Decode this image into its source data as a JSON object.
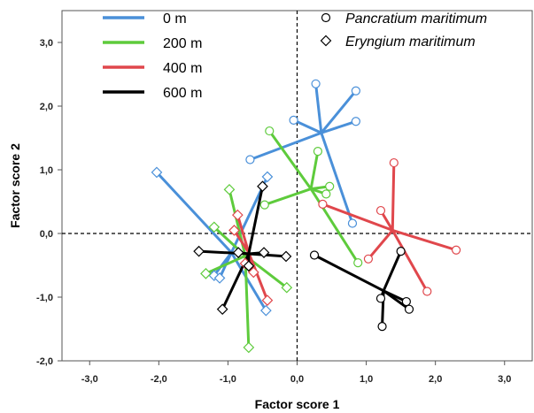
{
  "chart_data": {
    "type": "scatter",
    "xlabel": "Factor score 1",
    "ylabel": "Factor score  2",
    "xlim": [
      -3.4,
      3.4
    ],
    "ylim": [
      -2.0,
      3.5
    ],
    "x_ticks": [
      -3,
      -2,
      -1,
      0,
      1,
      2,
      3
    ],
    "y_ticks": [
      -2,
      -1,
      0,
      1,
      2,
      3
    ],
    "x_tick_labels": [
      "-3,0",
      "-2,0",
      "-1,0",
      "0,0",
      "1,0",
      "2,0",
      "3,0"
    ],
    "y_tick_labels": [
      "-2,0",
      "-1,0",
      "0,0",
      "1,0",
      "2,0",
      "3,0"
    ],
    "reference_lines": {
      "x": 0,
      "y": 0,
      "style": "dashed"
    },
    "grid": false,
    "legend": {
      "placement": "top-left",
      "distance_entries": [
        {
          "label": "0 m",
          "color": "#4a90d9"
        },
        {
          "label": "200 m",
          "color": "#5ecb3c"
        },
        {
          "label": "400 m",
          "color": "#e0474c"
        },
        {
          "label": "600 m",
          "color": "#000000"
        }
      ],
      "species_entries": [
        {
          "label": "Pancratium maritimum",
          "marker": "circle"
        },
        {
          "label": "Eryngium maritimum",
          "marker": "diamond"
        }
      ]
    },
    "groups": [
      {
        "distance": "0 m",
        "species": "Pancratium maritimum",
        "marker": "circle",
        "color": "#4a90d9",
        "centroid": [
          0.35,
          1.58
        ],
        "points": [
          [
            0.27,
            2.35
          ],
          [
            0.85,
            2.24
          ],
          [
            -0.05,
            1.78
          ],
          [
            0.85,
            1.76
          ],
          [
            -0.68,
            1.16
          ],
          [
            0.8,
            0.16
          ]
        ]
      },
      {
        "distance": "200 m",
        "species": "Pancratium maritimum",
        "marker": "circle",
        "color": "#5ecb3c",
        "centroid": [
          0.2,
          0.7
        ],
        "points": [
          [
            -0.4,
            1.61
          ],
          [
            0.3,
            1.29
          ],
          [
            0.47,
            0.74
          ],
          [
            0.42,
            0.62
          ],
          [
            -0.47,
            0.45
          ],
          [
            0.88,
            -0.46
          ]
        ]
      },
      {
        "distance": "400 m",
        "species": "Pancratium maritimum",
        "marker": "circle",
        "color": "#e0474c",
        "centroid": [
          1.38,
          0.05
        ],
        "points": [
          [
            1.4,
            1.11
          ],
          [
            1.21,
            0.36
          ],
          [
            0.37,
            0.46
          ],
          [
            2.3,
            -0.26
          ],
          [
            1.03,
            -0.4
          ],
          [
            1.88,
            -0.91
          ]
        ]
      },
      {
        "distance": "600 m",
        "species": "Pancratium maritimum",
        "marker": "circle",
        "color": "#000000",
        "centroid": [
          1.25,
          -0.9
        ],
        "points": [
          [
            0.25,
            -0.34
          ],
          [
            1.5,
            -0.28
          ],
          [
            1.21,
            -1.02
          ],
          [
            1.58,
            -1.07
          ],
          [
            1.62,
            -1.19
          ],
          [
            1.23,
            -1.46
          ]
        ]
      },
      {
        "distance": "0 m",
        "species": "Eryngium maritimum",
        "marker": "diamond",
        "color": "#4a90d9",
        "centroid": [
          -0.95,
          -0.3
        ],
        "points": [
          [
            -2.03,
            0.96
          ],
          [
            -0.43,
            0.89
          ],
          [
            -1.2,
            -0.66
          ],
          [
            -1.12,
            -0.7
          ],
          [
            -0.45,
            -1.21
          ]
        ]
      },
      {
        "distance": "200 m",
        "species": "Eryngium maritimum",
        "marker": "diamond",
        "color": "#5ecb3c",
        "centroid": [
          -0.75,
          -0.35
        ],
        "points": [
          [
            -0.98,
            0.69
          ],
          [
            -1.2,
            0.1
          ],
          [
            -1.32,
            -0.63
          ],
          [
            -0.15,
            -0.85
          ],
          [
            -0.7,
            -1.79
          ]
        ]
      },
      {
        "distance": "400 m",
        "species": "Eryngium maritimum",
        "marker": "diamond",
        "color": "#e0474c",
        "centroid": [
          -0.7,
          -0.3
        ],
        "points": [
          [
            -0.86,
            0.29
          ],
          [
            -0.91,
            0.05
          ],
          [
            -0.75,
            -0.47
          ],
          [
            -0.63,
            -0.61
          ],
          [
            -0.43,
            -1.05
          ]
        ]
      },
      {
        "distance": "600 m",
        "species": "Eryngium maritimum",
        "marker": "diamond",
        "color": "#000000",
        "centroid": [
          -0.7,
          -0.32
        ],
        "points": [
          [
            -0.5,
            0.74
          ],
          [
            -1.42,
            -0.28
          ],
          [
            -0.85,
            -0.3
          ],
          [
            -0.48,
            -0.3
          ],
          [
            -0.16,
            -0.36
          ],
          [
            -0.7,
            -0.51
          ],
          [
            -1.08,
            -1.19
          ]
        ]
      }
    ]
  }
}
